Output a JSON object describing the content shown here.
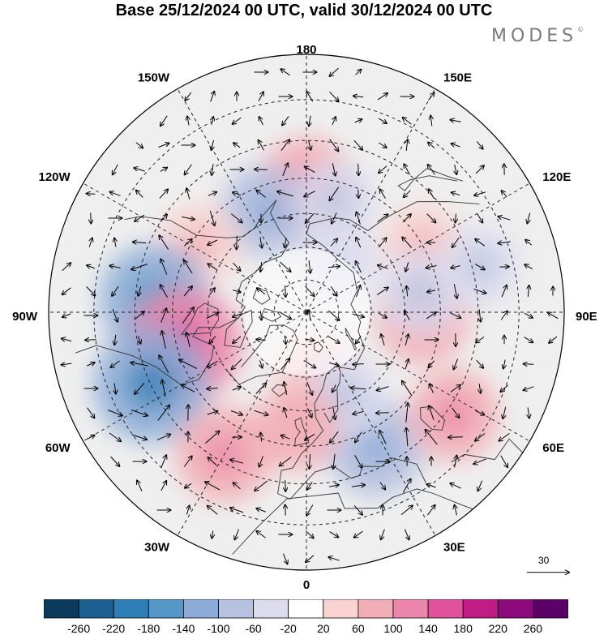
{
  "title": "Base 25/12/2024 00 UTC, valid 30/12/2024 00 UTC",
  "logo": {
    "text": "MODES",
    "mark": "©"
  },
  "longitude_labels": [
    {
      "id": "180",
      "text": "180"
    },
    {
      "id": "150E",
      "text": "150E"
    },
    {
      "id": "120E",
      "text": "120E"
    },
    {
      "id": "90E",
      "text": "90E"
    },
    {
      "id": "60E",
      "text": "60E"
    },
    {
      "id": "30E",
      "text": "30E"
    },
    {
      "id": "0",
      "text": "0"
    },
    {
      "id": "30W",
      "text": "30W"
    },
    {
      "id": "60W",
      "text": "60W"
    },
    {
      "id": "90W",
      "text": "90W"
    },
    {
      "id": "120W",
      "text": "120W"
    },
    {
      "id": "150W",
      "text": "150W"
    }
  ],
  "reference_vector": {
    "value": "30"
  },
  "colorbar": {
    "labels": [
      "-260",
      "-220",
      "-180",
      "-140",
      "-100",
      "-60",
      "-20",
      "20",
      "60",
      "100",
      "140",
      "180",
      "220",
      "260"
    ],
    "colors": [
      "#0a3b5c",
      "#1a5f90",
      "#2e7fb8",
      "#5497c8",
      "#8cabd6",
      "#b7c1e0",
      "#dcdcee",
      "#ffffff",
      "#f8d3d2",
      "#f2aeb6",
      "#ec86aa",
      "#e0529b",
      "#c11c86",
      "#8e0a7c",
      "#5a0066"
    ]
  },
  "map": {
    "projection": "north-polar-stereographic",
    "anomalies": [
      {
        "lon": -180,
        "lat": 52,
        "value": 90
      },
      {
        "lon": -158,
        "lat": 57,
        "value": -75
      },
      {
        "lon": 165,
        "lat": 55,
        "value": -45
      },
      {
        "lon": -122,
        "lat": 52,
        "value": 55
      },
      {
        "lon": 120,
        "lat": 50,
        "value": 55
      },
      {
        "lon": -95,
        "lat": 45,
        "value": -120
      },
      {
        "lon": -75,
        "lat": 52,
        "value": 130
      },
      {
        "lon": -65,
        "lat": 40,
        "value": -135
      },
      {
        "lon": -30,
        "lat": 42,
        "value": 90
      },
      {
        "lon": 27,
        "lat": 45,
        "value": -90
      },
      {
        "lon": 55,
        "lat": 38,
        "value": 75
      },
      {
        "lon": 88,
        "lat": 55,
        "value": 85
      },
      {
        "lon": 100,
        "lat": 55,
        "value": -60
      },
      {
        "lon": 150,
        "lat": 70,
        "value": -40
      },
      {
        "lon": 10,
        "lat": 70,
        "value": 55
      },
      {
        "lon": 25,
        "lat": 62,
        "value": -50
      },
      {
        "lon": 105,
        "lat": 38,
        "value": -45
      },
      {
        "lon": -5,
        "lat": 55,
        "value": 60
      }
    ]
  }
}
